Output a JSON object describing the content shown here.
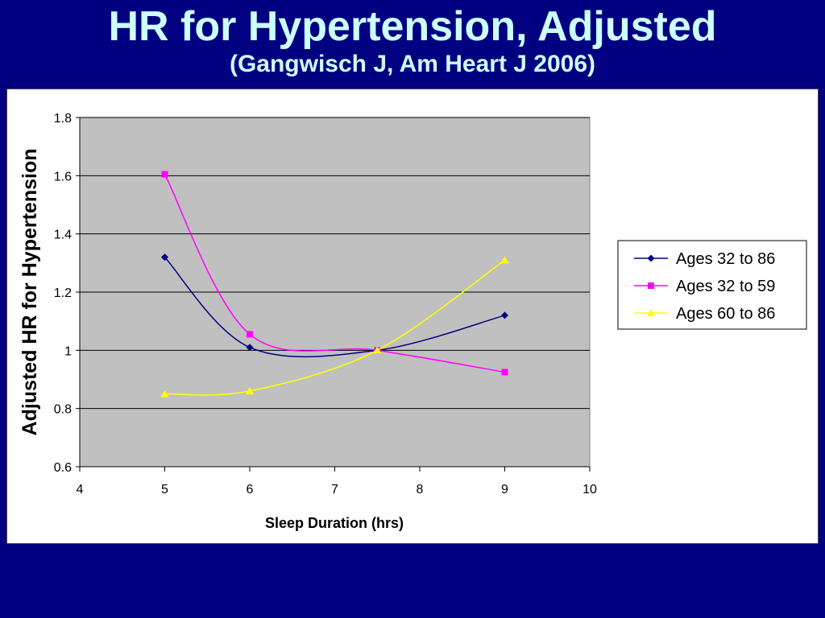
{
  "slide": {
    "title": "HR for Hypertension, Adjusted",
    "subtitle": "(Gangwisch J, Am Heart J 2006)"
  },
  "colors": {
    "background": "#000080",
    "title": "#CCFFFF",
    "plot_area": "#C0C0C0"
  },
  "chart_data": {
    "type": "line",
    "xlabel": "Sleep Duration (hrs)",
    "ylabel": "Adjusted HR for Hypertension",
    "xlim": [
      4,
      10
    ],
    "ylim": [
      0.6,
      1.8
    ],
    "xticks": [
      "4",
      "5",
      "6",
      "7",
      "8",
      "9",
      "10"
    ],
    "yticks": [
      "0.6",
      "0.8",
      "1",
      "1.2",
      "1.4",
      "1.6",
      "1.8"
    ],
    "grid": "horizontal",
    "legend_position": "right",
    "series": [
      {
        "name": "Ages 32 to 86",
        "color": "#000080",
        "marker": "diamond",
        "x": [
          5,
          6,
          7.5,
          9
        ],
        "y": [
          1.32,
          1.01,
          1.0,
          1.12
        ]
      },
      {
        "name": "Ages 32 to 59",
        "color": "#FF00FF",
        "marker": "square",
        "x": [
          5,
          6,
          7.5,
          9
        ],
        "y": [
          1.605,
          1.055,
          1.0,
          0.925
        ]
      },
      {
        "name": "Ages 60 to 86",
        "color": "#FFFF00",
        "marker": "triangle",
        "x": [
          5,
          6,
          7.5,
          9
        ],
        "y": [
          0.85,
          0.86,
          1.0,
          1.31
        ]
      }
    ]
  }
}
